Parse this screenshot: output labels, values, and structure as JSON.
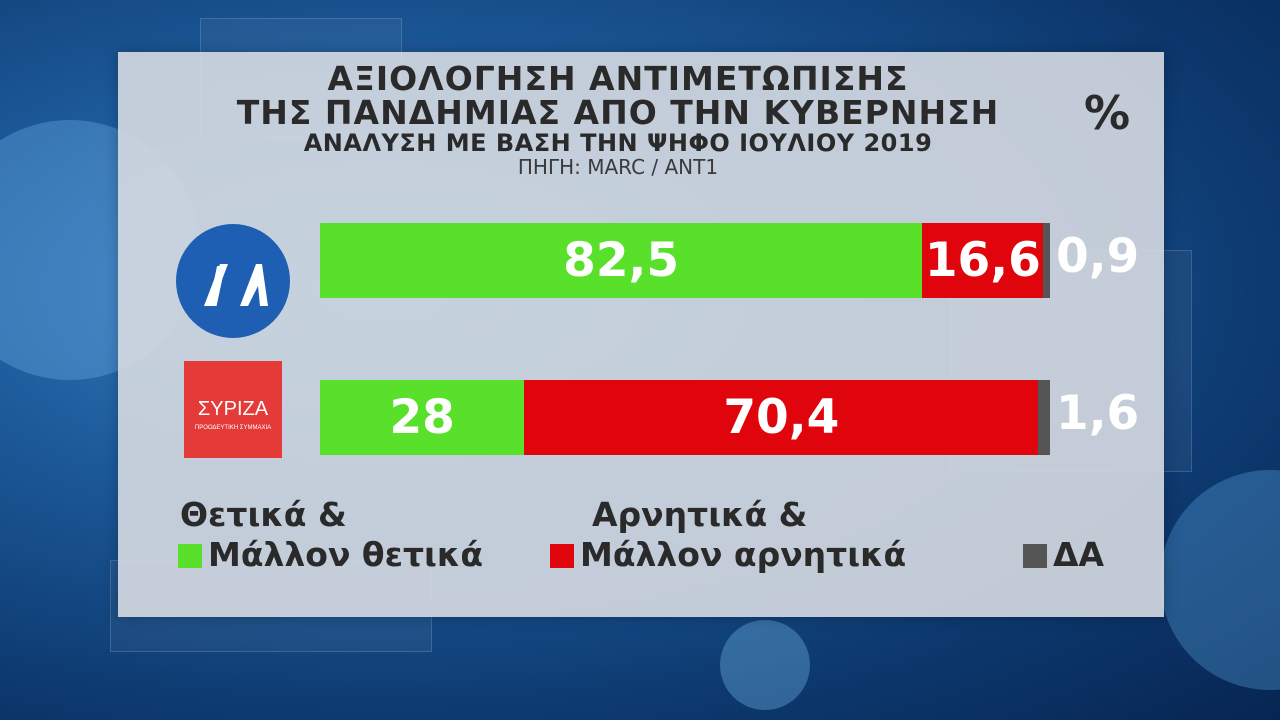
{
  "title": {
    "line1": "ΑΞΙΟΛΟΓΗΣΗ ΑΝΤΙΜΕΤΩΠΙΣΗΣ",
    "line2": "ΤΗΣ ΠΑΝΔΗΜΙΑΣ ΑΠΟ ΤΗΝ ΚΥΒΕΡΝΗΣΗ",
    "line3": "ΑΝΑΛΥΣΗ ΜΕ ΒΑΣΗ ΤΗΝ ΨΗΦΟ ΙΟΥΛΙΟΥ 2019",
    "source": "ΠΗΓΗ: MARC / ΑΝΤ1",
    "unit": "%"
  },
  "logos": {
    "nd": {
      "text": "ΝΔ",
      "color": "#1f5fb3"
    },
    "syriza": {
      "text": "ΣΥΡΙΖΑ",
      "subtext": "ΠΡΟΟΔΕΥΤΙΚΗ ΣΥΜΜΑΧΙΑ",
      "color": "#e43a38"
    }
  },
  "legend": {
    "positive_line1": "Θετικά &",
    "positive_line2": "Μάλλον θετικά",
    "negative_line1": "Αρνητικά &",
    "negative_line2": "Μάλλον αρνητικά",
    "na": "ΔΑ"
  },
  "colors": {
    "positive": "#59e02b",
    "negative": "#e0050d",
    "na": "#555555"
  },
  "chart_data": {
    "type": "bar",
    "orientation": "horizontal",
    "stacked": true,
    "categories": [
      "ΝΔ",
      "ΣΥΡΙΖΑ"
    ],
    "series": [
      {
        "name": "Θετικά & Μάλλον θετικά",
        "values": [
          82.5,
          28
        ],
        "labels": [
          "82,5",
          "28"
        ]
      },
      {
        "name": "Αρνητικά & Μάλλον αρνητικά",
        "values": [
          16.6,
          70.4
        ],
        "labels": [
          "16,6",
          "70,4"
        ]
      },
      {
        "name": "ΔΑ",
        "values": [
          0.9,
          1.6
        ],
        "labels": [
          "0,9",
          "1,6"
        ]
      }
    ],
    "xlim": [
      0,
      100
    ],
    "legend_position": "bottom"
  }
}
